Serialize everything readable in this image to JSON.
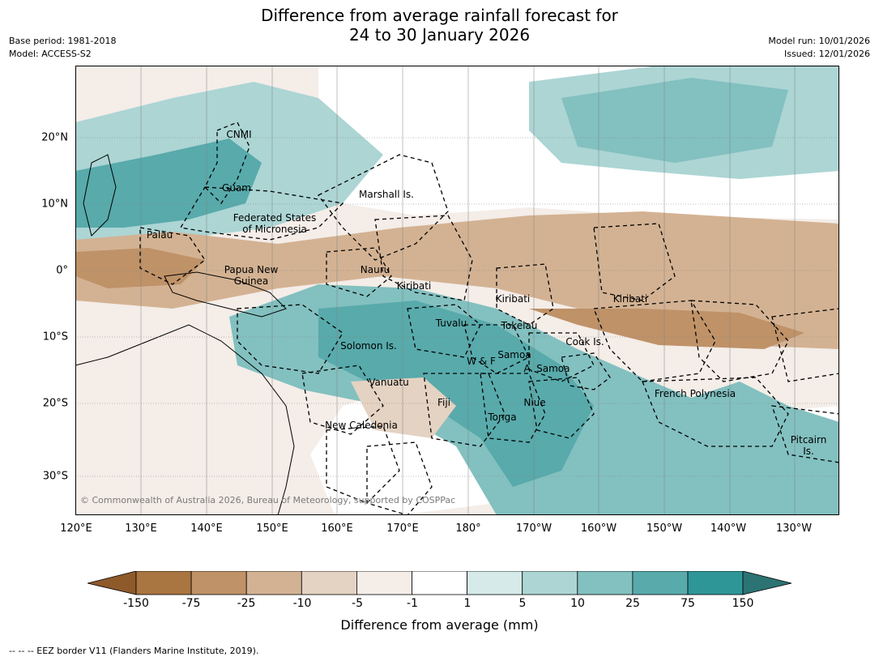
{
  "title": {
    "line1": "Difference from average rainfall forecast for",
    "line2": "24 to 30 January 2026"
  },
  "meta": {
    "base_period": "Base period: 1981-2018",
    "model": "Model: ACCESS-S2",
    "model_run": "Model run: 10/01/2026",
    "issued": "Issued: 12/01/2026"
  },
  "map": {
    "region_labels": [
      "CNMI",
      "Guam",
      "Marshall Is.",
      "Federated States",
      "of Micronesia",
      "Palau",
      "Papua New",
      "Guinea",
      "Nauru",
      "Kiribati",
      "Kiribati",
      "Kiribati",
      "Tuvalu",
      "Tokelau",
      "Solomon Is.",
      "W & F",
      "Samoa",
      "A. Samoa",
      "Cook Is.",
      "Vanuatu",
      "Fiji",
      "Niue",
      "Tonga",
      "French Polynesia",
      "New Caledonia",
      "Pitcairn",
      "Is."
    ],
    "lat_labels": [
      "20°N",
      "10°N",
      "0°",
      "10°S",
      "20°S",
      "30°S"
    ],
    "lon_labels": [
      "120°E",
      "130°E",
      "140°E",
      "150°E",
      "160°E",
      "170°E",
      "180°",
      "170°W",
      "160°W",
      "150°W",
      "140°W",
      "130°W"
    ],
    "copyright": "© Commonwealth of Australia 2026, Bureau of Meteorology, supported by COSPPac"
  },
  "colorbar": {
    "ticks": [
      "-150",
      "-75",
      "-25",
      "-10",
      "-5",
      "-1",
      "1",
      "5",
      "10",
      "25",
      "75",
      "150"
    ],
    "colors": [
      "#8e5a2a",
      "#a97540",
      "#bf9268",
      "#d3b293",
      "#e4d2c2",
      "#f4ede8",
      "#ffffff",
      "#d5eae9",
      "#acd5d4",
      "#83c0c0",
      "#58aaab",
      "#2f9697",
      "#2c7373"
    ],
    "label": "Difference from average (mm)"
  },
  "eez_note": "-- -- -- EEZ border V11 (Flanders Marine Institute, 2019)."
}
